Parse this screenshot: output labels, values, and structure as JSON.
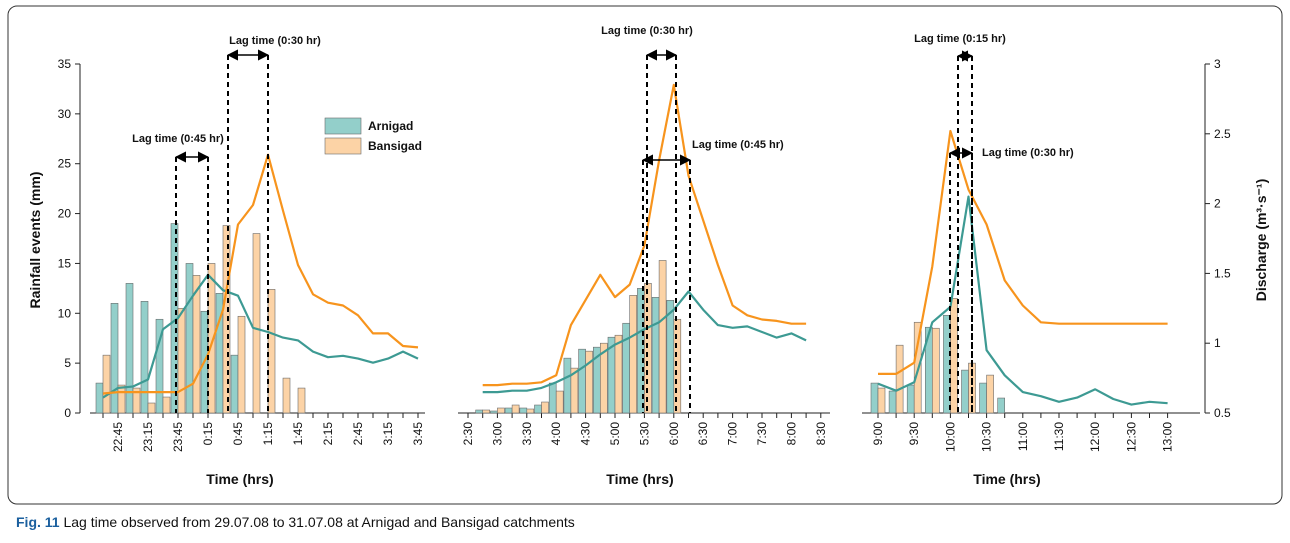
{
  "chart_data": {
    "type": "bar-line",
    "ylabel": "Rainfall events (mm)",
    "y2label": "Discharge (m³·s⁻¹)",
    "ylim": [
      0,
      35
    ],
    "yticks": [
      0,
      5,
      10,
      15,
      20,
      25,
      30,
      35
    ],
    "y2lim": [
      0.5,
      3
    ],
    "y2ticks": [
      0.5,
      1,
      1.5,
      2,
      2.5,
      3
    ],
    "series": [
      {
        "name": "Arnigad",
        "bar_color": "#93cfca",
        "line_color": "#3d9a93"
      },
      {
        "name": "Bansigad",
        "bar_color": "#fcd3a6",
        "line_color": "#f7941d"
      }
    ],
    "panels": [
      {
        "xlabel": "Time (hrs)",
        "categories": [
          null,
          "22:45",
          null,
          "23:15",
          null,
          "23:45",
          null,
          "0:15",
          null,
          "0:45",
          null,
          "1:15",
          null,
          "1:45",
          null,
          "2:15",
          null,
          "2:45",
          null,
          "3:15",
          null,
          "3:45"
        ],
        "rainfall": [
          [
            3,
            11,
            13,
            11.2,
            9.4,
            19,
            15,
            10.2,
            12,
            5.8,
            null,
            null,
            null,
            null,
            null,
            null,
            null,
            null,
            null,
            null,
            null,
            null
          ],
          [
            5.8,
            2.8,
            2.5,
            1.0,
            1.6,
            10.5,
            13.8,
            15,
            18.8,
            9.7,
            18,
            12.4,
            3.5,
            2.5,
            null,
            null,
            null,
            null,
            null,
            null,
            null,
            null
          ]
        ],
        "discharge": [
          [
            0.61,
            0.68,
            0.69,
            0.74,
            1.1,
            1.18,
            1.34,
            1.49,
            1.38,
            1.34,
            1.11,
            1.08,
            1.04,
            1.02,
            0.94,
            0.9,
            0.91,
            0.89,
            0.86,
            0.89,
            0.94,
            0.89
          ],
          [
            0.64,
            0.65,
            0.65,
            0.65,
            0.65,
            0.65,
            0.71,
            0.92,
            1.24,
            1.85,
            1.99,
            2.35,
            1.95,
            1.56,
            1.35,
            1.29,
            1.27,
            1.2,
            1.07,
            1.07,
            0.98,
            0.97
          ]
        ],
        "annotations": [
          "Lag time (0:45 hr)",
          "Lag time (0:30 hr)"
        ]
      },
      {
        "xlabel": "Time (hrs)",
        "categories": [
          "2:30",
          null,
          "3:00",
          null,
          "3:30",
          null,
          "4:00",
          null,
          "4:30",
          null,
          "5:00",
          null,
          "5:30",
          null,
          "6:00",
          null,
          "6:30",
          null,
          "7:00",
          null,
          "7:30",
          null,
          "8:00",
          null,
          "8:30"
        ],
        "rainfall": [
          [
            null,
            0.3,
            0.2,
            0.5,
            0.5,
            0.8,
            3.0,
            5.5,
            6.4,
            6.6,
            7.6,
            9.0,
            12.5,
            11.6,
            11.3,
            null,
            null,
            null,
            null,
            null,
            null,
            null,
            null,
            null,
            null
          ],
          [
            null,
            0.3,
            0.5,
            0.8,
            0.4,
            1.1,
            2.2,
            4.5,
            6.2,
            7.0,
            7.8,
            11.8,
            13.0,
            15.3,
            9.4,
            null,
            null,
            null,
            null,
            null,
            null,
            null,
            null,
            null,
            null
          ]
        ],
        "discharge": [
          [
            null,
            0.65,
            0.65,
            0.66,
            0.66,
            0.68,
            0.72,
            0.77,
            0.84,
            0.92,
            0.99,
            1.04,
            1.1,
            1.15,
            1.24,
            1.37,
            1.24,
            1.13,
            1.11,
            1.12,
            1.08,
            1.04,
            1.07,
            1.02,
            null
          ],
          [
            null,
            0.7,
            0.7,
            0.71,
            0.71,
            0.72,
            0.77,
            1.13,
            1.31,
            1.49,
            1.33,
            1.42,
            1.7,
            2.31,
            2.85,
            2.2,
            1.88,
            1.56,
            1.27,
            1.2,
            1.17,
            1.16,
            1.14,
            1.14,
            null
          ]
        ],
        "annotations": [
          "Lag time (0:30 hr)",
          "Lag time (0:45 hr)"
        ]
      },
      {
        "xlabel": "Time (hrs)",
        "categories": [
          "9:00",
          null,
          "9:30",
          null,
          "10:00",
          null,
          "10:30",
          null,
          "11:00",
          null,
          "11:30",
          null,
          "12:00",
          null,
          "12:30",
          null,
          "13:00"
        ],
        "rainfall": [
          [
            3.0,
            2.2,
            2.8,
            8.6,
            9.8,
            4.3,
            3.0,
            1.5,
            null,
            null,
            null,
            null,
            null,
            null,
            null,
            null,
            null
          ],
          [
            2.5,
            6.8,
            9.1,
            8.5,
            11.5,
            5.0,
            3.8,
            null,
            null,
            null,
            null,
            null,
            null,
            null,
            null,
            null,
            null
          ]
        ],
        "discharge": [
          [
            0.71,
            0.66,
            0.72,
            1.15,
            1.26,
            2.05,
            0.95,
            0.77,
            0.65,
            0.62,
            0.58,
            0.61,
            0.67,
            0.6,
            0.56,
            0.58,
            0.57
          ],
          [
            0.78,
            0.78,
            0.86,
            1.55,
            2.52,
            2.1,
            1.85,
            1.45,
            1.27,
            1.15,
            1.14,
            1.14,
            1.14,
            1.14,
            1.14,
            1.14,
            1.14
          ]
        ],
        "annotations": [
          "Lag time (0:15 hr)",
          "Lag time (0:30 hr)"
        ]
      }
    ],
    "caption_label": "Fig. 11",
    "caption": "Lag time observed from 29.07.08 to 31.07.08 at Arnigad and Bansigad catchments"
  }
}
